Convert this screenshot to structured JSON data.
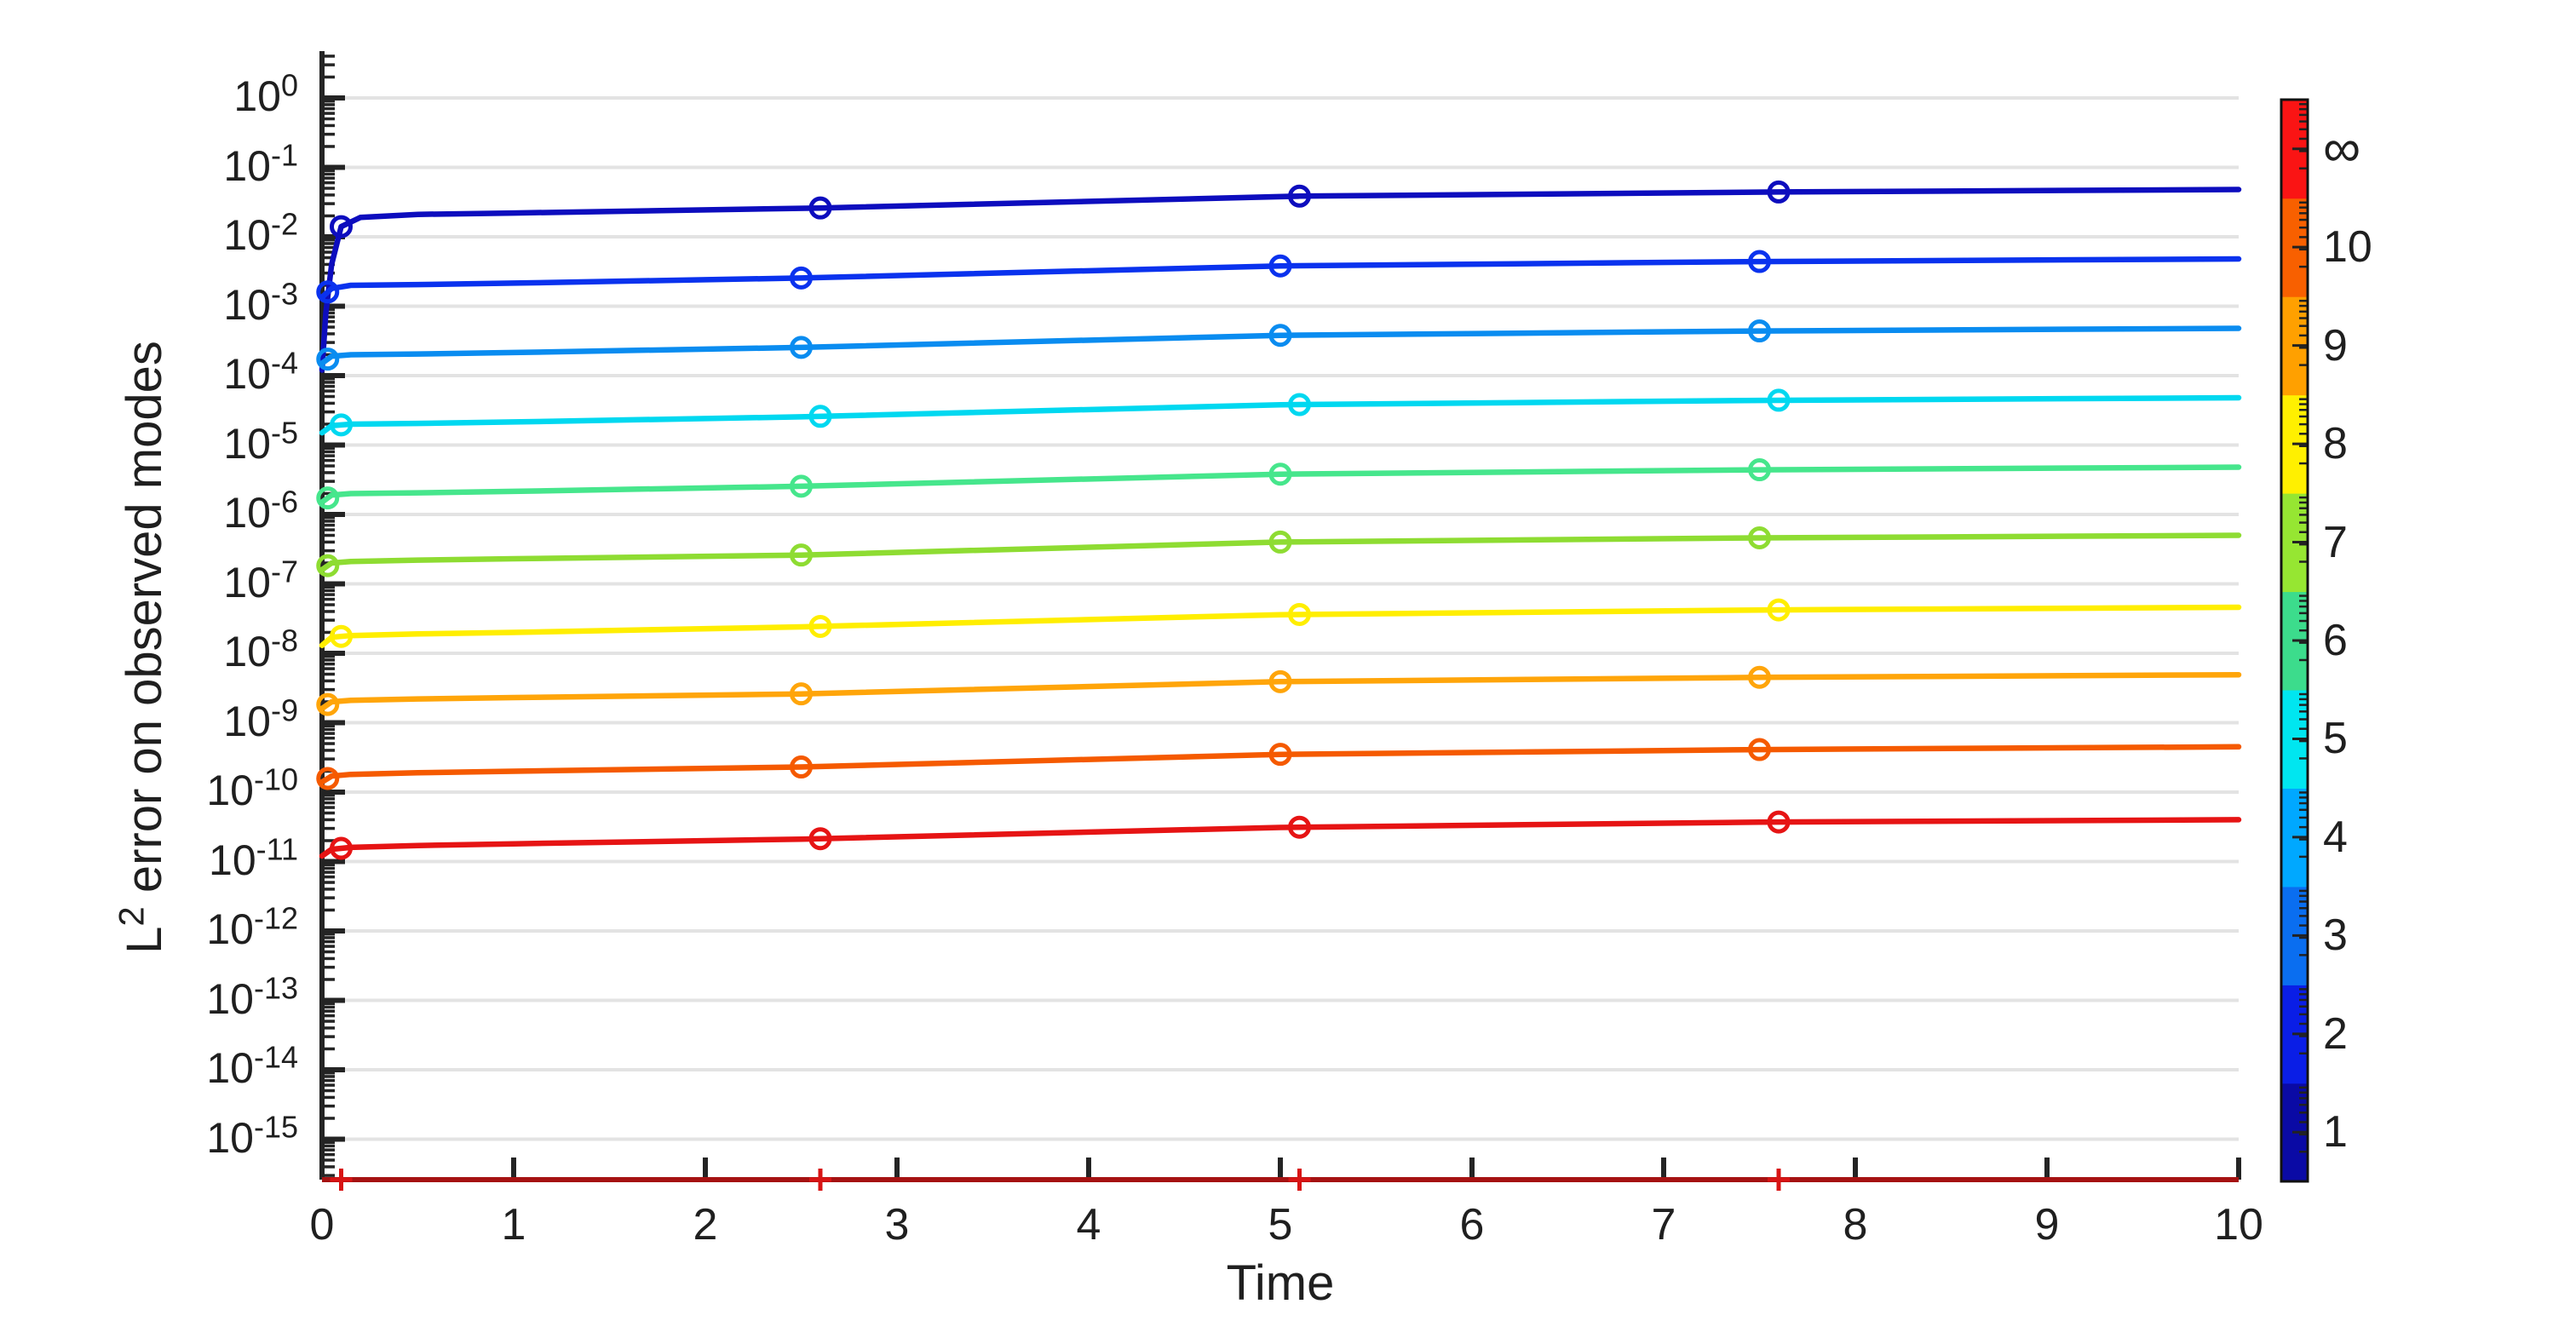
{
  "figure": {
    "background": "#ffffff",
    "axes_color": "#242424",
    "grid_color": "#e3e3e3"
  },
  "chart_data": {
    "type": "line",
    "title": "",
    "xlabel": "Time",
    "ylabel": {
      "prefix": "L",
      "sup": "2",
      "rest": " error on observed modes"
    },
    "x_range": [
      0,
      10
    ],
    "x_ticks": [
      0,
      1,
      2,
      3,
      4,
      5,
      6,
      7,
      8,
      9,
      10
    ],
    "y_scale": "log",
    "y_tick_exponents": [
      0,
      -1,
      -2,
      -3,
      -4,
      -5,
      -6,
      -7,
      -8,
      -9,
      -10,
      -11,
      -12,
      -13,
      -14,
      -15
    ],
    "y_limits_log10": [
      -15.6,
      0.67
    ],
    "grid": "horizontal-only",
    "legend": "colorbar-right",
    "series": [
      {
        "mode": "1",
        "color": "#0D0DBE",
        "marker": "o",
        "marker_t": [
          0.1,
          2.6,
          5.1,
          7.6
        ],
        "points": [
          [
            0,
            0.00012
          ],
          [
            0.02,
            0.0008
          ],
          [
            0.05,
            0.004
          ],
          [
            0.1,
            0.014
          ],
          [
            0.2,
            0.019
          ],
          [
            0.5,
            0.021
          ],
          [
            1,
            0.022
          ],
          [
            2.6,
            0.026
          ],
          [
            5.1,
            0.0385
          ],
          [
            7.6,
            0.0442
          ],
          [
            10,
            0.048
          ]
        ]
      },
      {
        "mode": "2",
        "color": "#0A32EE",
        "marker": "o",
        "marker_t": [
          0.03,
          2.5,
          5.0,
          7.5
        ],
        "points": [
          [
            0,
            0.00135
          ],
          [
            0.05,
            0.0018
          ],
          [
            0.15,
            0.002
          ],
          [
            0.5,
            0.00205
          ],
          [
            1,
            0.00215
          ],
          [
            2.5,
            0.00255
          ],
          [
            5,
            0.0038
          ],
          [
            7.5,
            0.0044
          ],
          [
            10,
            0.0048
          ]
        ]
      },
      {
        "mode": "3",
        "color": "#0A8CF0",
        "marker": "o",
        "marker_t": [
          0.03,
          2.5,
          5.0,
          7.5
        ],
        "points": [
          [
            0,
            0.00015
          ],
          [
            0.05,
            0.00019
          ],
          [
            0.15,
            0.0002
          ],
          [
            0.5,
            0.000205
          ],
          [
            1,
            0.000215
          ],
          [
            2.5,
            0.000255
          ],
          [
            5,
            0.00038
          ],
          [
            7.5,
            0.00044
          ],
          [
            10,
            0.00048
          ]
        ]
      },
      {
        "mode": "4",
        "color": "#00D8F0",
        "marker": "o",
        "marker_t": [
          0.1,
          2.6,
          5.1,
          7.6
        ],
        "points": [
          [
            0,
            1.5e-05
          ],
          [
            0.05,
            1.9e-05
          ],
          [
            0.15,
            2e-05
          ],
          [
            0.5,
            2.05e-05
          ],
          [
            1,
            2.15e-05
          ],
          [
            2.5,
            2.55e-05
          ],
          [
            5,
            3.8e-05
          ],
          [
            7.5,
            4.4e-05
          ],
          [
            10,
            4.8e-05
          ]
        ]
      },
      {
        "mode": "5",
        "color": "#46E68C",
        "marker": "o",
        "marker_t": [
          0.03,
          2.5,
          5.0,
          7.5
        ],
        "points": [
          [
            0,
            1.5e-06
          ],
          [
            0.05,
            1.9e-06
          ],
          [
            0.15,
            2e-06
          ],
          [
            0.5,
            2.05e-06
          ],
          [
            1,
            2.15e-06
          ],
          [
            2.5,
            2.55e-06
          ],
          [
            5,
            3.8e-06
          ],
          [
            7.5,
            4.4e-06
          ],
          [
            10,
            4.8e-06
          ]
        ]
      },
      {
        "mode": "6",
        "color": "#8EDC32",
        "marker": "o",
        "marker_t": [
          0.03,
          2.5,
          5.0,
          7.5
        ],
        "points": [
          [
            0,
            1.6e-07
          ],
          [
            0.05,
            2e-07
          ],
          [
            0.15,
            2.1e-07
          ],
          [
            0.5,
            2.2e-07
          ],
          [
            1,
            2.3e-07
          ],
          [
            2.5,
            2.6e-07
          ],
          [
            5,
            4e-07
          ],
          [
            7.5,
            4.6e-07
          ],
          [
            10,
            5e-07
          ]
        ]
      },
      {
        "mode": "7",
        "color": "#FFEE00",
        "marker": "o",
        "marker_t": [
          0.1,
          2.6,
          5.1,
          7.6
        ],
        "points": [
          [
            0,
            1.3e-08
          ],
          [
            0.05,
            1.7e-08
          ],
          [
            0.15,
            1.8e-08
          ],
          [
            0.5,
            1.9e-08
          ],
          [
            1,
            2e-08
          ],
          [
            2.5,
            2.4e-08
          ],
          [
            5,
            3.6e-08
          ],
          [
            7.5,
            4.2e-08
          ],
          [
            10,
            4.6e-08
          ]
        ]
      },
      {
        "mode": "8",
        "color": "#FFA50A",
        "marker": "o",
        "marker_t": [
          0.03,
          2.5,
          5.0,
          7.5
        ],
        "points": [
          [
            0,
            1.6e-09
          ],
          [
            0.05,
            2e-09
          ],
          [
            0.15,
            2.1e-09
          ],
          [
            0.5,
            2.2e-09
          ],
          [
            1,
            2.3e-09
          ],
          [
            2.5,
            2.6e-09
          ],
          [
            5,
            3.9e-09
          ],
          [
            7.5,
            4.5e-09
          ],
          [
            10,
            4.9e-09
          ]
        ]
      },
      {
        "mode": "9",
        "color": "#F55A00",
        "marker": "o",
        "marker_t": [
          0.03,
          2.5,
          5.0,
          7.5
        ],
        "points": [
          [
            0,
            1.4e-10
          ],
          [
            0.05,
            1.7e-10
          ],
          [
            0.15,
            1.8e-10
          ],
          [
            0.5,
            1.9e-10
          ],
          [
            1,
            2e-10
          ],
          [
            2.5,
            2.3e-10
          ],
          [
            5,
            3.5e-10
          ],
          [
            7.5,
            4.1e-10
          ],
          [
            10,
            4.5e-10
          ]
        ]
      },
      {
        "mode": "10",
        "color": "#E61414",
        "marker": "o",
        "marker_t": [
          0.1,
          2.6,
          5.1,
          7.6
        ],
        "points": [
          [
            0,
            1.2e-11
          ],
          [
            0.05,
            1.5e-11
          ],
          [
            0.15,
            1.6e-11
          ],
          [
            0.5,
            1.7e-11
          ],
          [
            1,
            1.8e-11
          ],
          [
            2.5,
            2.1e-11
          ],
          [
            5,
            3.1e-11
          ],
          [
            7.5,
            3.7e-11
          ],
          [
            10,
            4e-11
          ]
        ]
      },
      {
        "mode": "∞",
        "color": "#A51212",
        "marker": "+",
        "marker_color": "#D81414",
        "marker_t": [
          0.1,
          2.6,
          5.1,
          7.6
        ],
        "clipped_at_bottom": true,
        "points": [
          [
            0,
            0
          ],
          [
            10,
            0
          ]
        ]
      }
    ],
    "colorbar": {
      "bands_bottom_to_top": [
        {
          "label": "1",
          "color": "#0A0AA5"
        },
        {
          "label": "2",
          "color": "#0A1EE6"
        },
        {
          "label": "3",
          "color": "#0A6EF0"
        },
        {
          "label": "4",
          "color": "#00A8FF"
        },
        {
          "label": "5",
          "color": "#00E6F0"
        },
        {
          "label": "6",
          "color": "#3CDC8C"
        },
        {
          "label": "7",
          "color": "#96E632"
        },
        {
          "label": "8",
          "color": "#FFF000"
        },
        {
          "label": "9",
          "color": "#FFA000"
        },
        {
          "label": "10",
          "color": "#F86000"
        },
        {
          "label": "∞",
          "color": "#FA1414"
        }
      ]
    }
  }
}
